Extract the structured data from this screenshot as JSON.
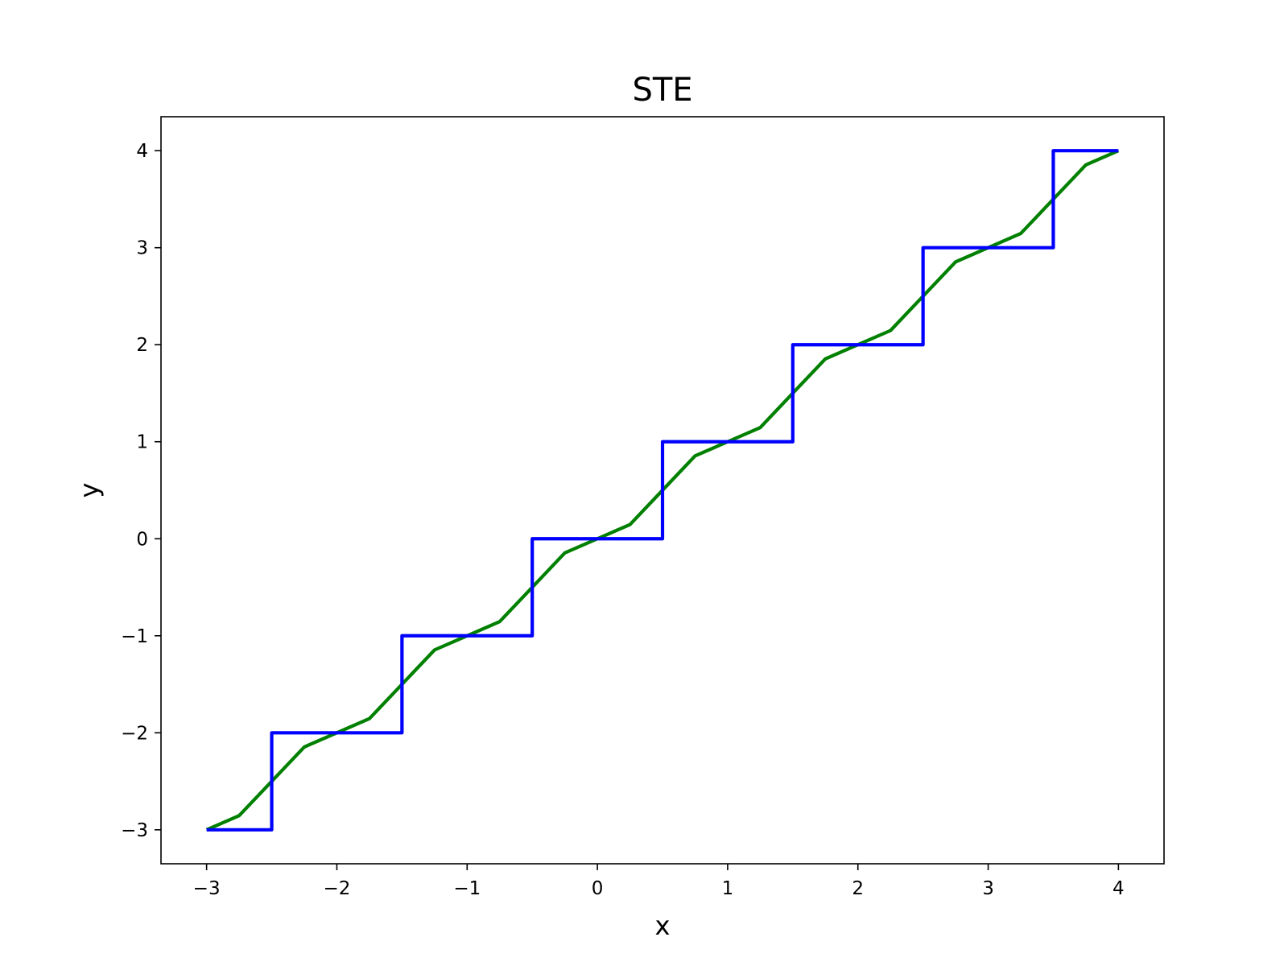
{
  "chart_data": {
    "type": "line",
    "title": "STE",
    "xlabel": "x",
    "ylabel": "y",
    "xlim": [
      -3.35,
      4.35
    ],
    "ylim": [
      -3.35,
      4.35
    ],
    "grid": false,
    "legend": "none",
    "x_ticks": [
      -3,
      -2,
      -1,
      0,
      1,
      2,
      3,
      4
    ],
    "y_ticks": [
      -3,
      -2,
      -1,
      0,
      1,
      2,
      3,
      4
    ],
    "x_tick_labels": [
      "−3",
      "−2",
      "−1",
      "0",
      "1",
      "2",
      "3",
      "4"
    ],
    "y_tick_labels": [
      "−3",
      "−2",
      "−1",
      "0",
      "1",
      "2",
      "3",
      "4"
    ],
    "series": [
      {
        "color": "#008000",
        "style": "smooth",
        "points": [
          [
            -3,
            -3
          ],
          [
            -2.75,
            -2.854
          ],
          [
            -2.5,
            -2.5
          ],
          [
            -2.25,
            -2.146
          ],
          [
            -2,
            -2
          ],
          [
            -1.75,
            -1.854
          ],
          [
            -1.5,
            -1.5
          ],
          [
            -1.25,
            -1.146
          ],
          [
            -1,
            -1
          ],
          [
            -0.75,
            -0.854
          ],
          [
            -0.5,
            -0.5
          ],
          [
            -0.25,
            -0.146
          ],
          [
            0,
            0
          ],
          [
            0.25,
            0.146
          ],
          [
            0.5,
            0.5
          ],
          [
            0.75,
            0.854
          ],
          [
            1,
            1
          ],
          [
            1.25,
            1.146
          ],
          [
            1.5,
            1.5
          ],
          [
            1.75,
            1.854
          ],
          [
            2,
            2
          ],
          [
            2.25,
            2.146
          ],
          [
            2.5,
            2.5
          ],
          [
            2.75,
            2.854
          ],
          [
            3,
            3
          ],
          [
            3.25,
            3.146
          ],
          [
            3.5,
            3.5
          ],
          [
            3.75,
            3.854
          ],
          [
            4,
            4
          ]
        ]
      },
      {
        "color": "#0000ff",
        "style": "step",
        "points": [
          [
            -3,
            -3
          ],
          [
            -2.5,
            -3
          ],
          [
            -2.5,
            -2
          ],
          [
            -1.5,
            -2
          ],
          [
            -1.5,
            -1
          ],
          [
            -0.5,
            -1
          ],
          [
            -0.5,
            0
          ],
          [
            0.5,
            0
          ],
          [
            0.5,
            1
          ],
          [
            1.5,
            1
          ],
          [
            1.5,
            2
          ],
          [
            2.5,
            2
          ],
          [
            2.5,
            3
          ],
          [
            3.5,
            3
          ],
          [
            3.5,
            4
          ],
          [
            4,
            4
          ]
        ]
      }
    ]
  }
}
